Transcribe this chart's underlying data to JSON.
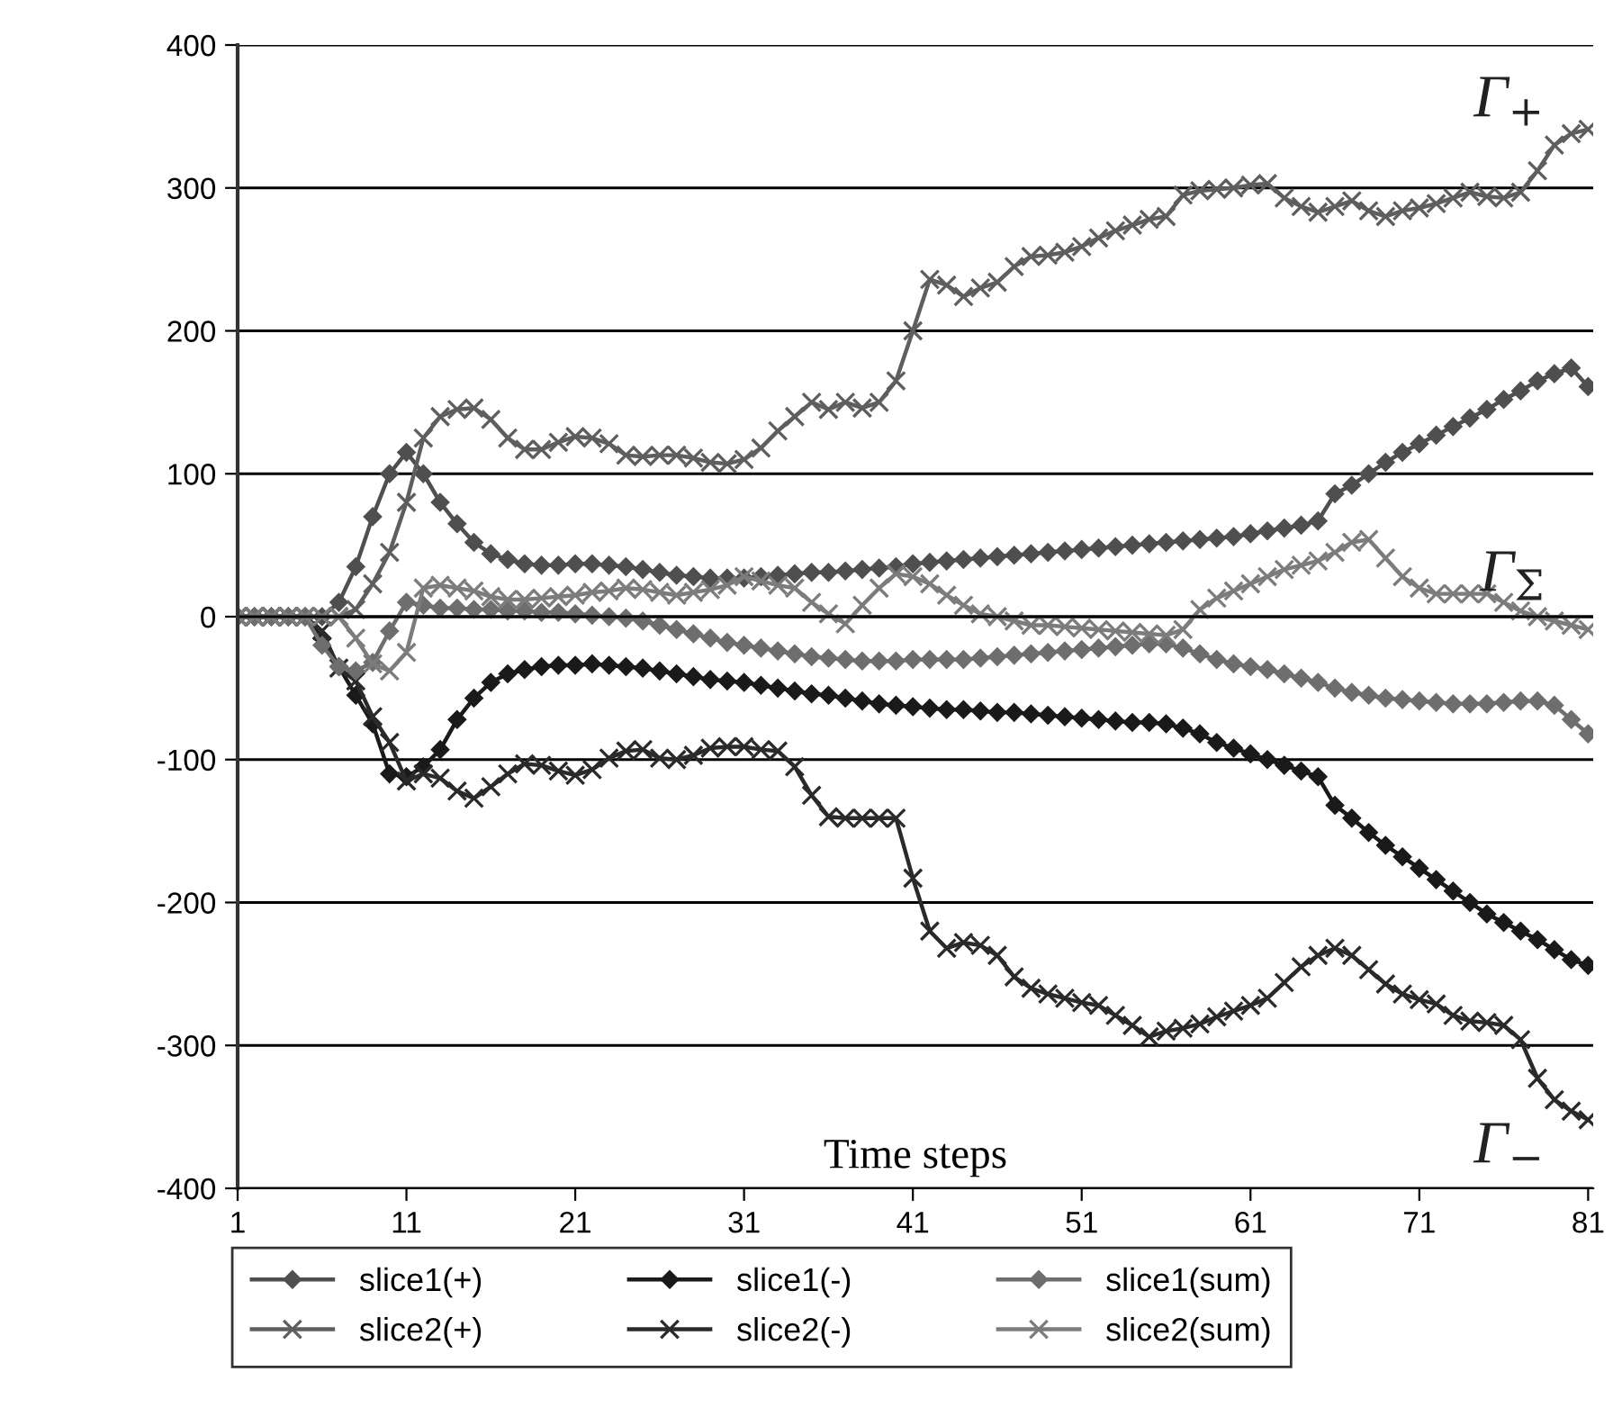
{
  "chart_data": {
    "type": "line",
    "xlabel": "Time steps",
    "categories": [
      "1",
      null,
      null,
      null,
      null,
      null,
      null,
      null,
      null,
      null,
      "11",
      null,
      null,
      null,
      null,
      null,
      null,
      null,
      null,
      null,
      "21",
      null,
      null,
      null,
      null,
      null,
      null,
      null,
      null,
      null,
      "31",
      null,
      null,
      null,
      null,
      null,
      null,
      null,
      null,
      null,
      "41",
      null,
      null,
      null,
      null,
      null,
      null,
      null,
      null,
      null,
      "51",
      null,
      null,
      null,
      null,
      null,
      null,
      null,
      null,
      null,
      "61",
      null,
      null,
      null,
      null,
      null,
      null,
      null,
      null,
      null,
      "71",
      null,
      null,
      null,
      null,
      null,
      null,
      null,
      null,
      null,
      "81"
    ],
    "series": [
      {
        "name": "slice1(+)",
        "color": "#4f4f4f",
        "marker": "diamond",
        "values": [
          0,
          0,
          0,
          0,
          0,
          0,
          10,
          35,
          70,
          100,
          115,
          100,
          80,
          65,
          52,
          44,
          40,
          37,
          36,
          36,
          37,
          37,
          36,
          35,
          33,
          31,
          29,
          28,
          27,
          27,
          27,
          28,
          29,
          30,
          31,
          31,
          32,
          33,
          34,
          35,
          37,
          38,
          39,
          40,
          41,
          42,
          43,
          44,
          45,
          46,
          47,
          48,
          49,
          50,
          51,
          52,
          53,
          54,
          55,
          56,
          58,
          60,
          62,
          64,
          67,
          86,
          92,
          100,
          108,
          115,
          121,
          127,
          133,
          139,
          145,
          152,
          158,
          165,
          170,
          174,
          161
        ]
      },
      {
        "name": "slice2(+)",
        "color": "#5e5e5e",
        "marker": "cross",
        "values": [
          0,
          0,
          0,
          0,
          0,
          0,
          0,
          5,
          23,
          45,
          80,
          125,
          140,
          145,
          146,
          138,
          125,
          117,
          117,
          122,
          126,
          125,
          121,
          113,
          112,
          113,
          113,
          111,
          108,
          107,
          110,
          118,
          130,
          140,
          150,
          145,
          150,
          146,
          150,
          165,
          200,
          236,
          232,
          224,
          230,
          234,
          245,
          252,
          253,
          255,
          259,
          265,
          270,
          274,
          278,
          280,
          295,
          298,
          299,
          300,
          302,
          303,
          293,
          287,
          283,
          287,
          291,
          284,
          280,
          284,
          286,
          289,
          293,
          297,
          294,
          293,
          297,
          312,
          330,
          338,
          341
        ]
      },
      {
        "name": "slice1(-)",
        "color": "#1a1a1a",
        "marker": "diamond",
        "values": [
          0,
          0,
          0,
          0,
          0,
          -15,
          -35,
          -55,
          -75,
          -110,
          -112,
          -105,
          -93,
          -72,
          -57,
          -46,
          -40,
          -37,
          -35,
          -34,
          -34,
          -33,
          -34,
          -35,
          -36,
          -38,
          -40,
          -42,
          -44,
          -45,
          -46,
          -48,
          -50,
          -52,
          -54,
          -55,
          -57,
          -59,
          -61,
          -62,
          -63,
          -64,
          -65,
          -65,
          -66,
          -67,
          -67,
          -68,
          -69,
          -70,
          -71,
          -72,
          -73,
          -74,
          -74,
          -75,
          -78,
          -82,
          -88,
          -92,
          -96,
          -100,
          -104,
          -108,
          -112,
          -132,
          -141,
          -151,
          -160,
          -168,
          -176,
          -184,
          -192,
          -200,
          -208,
          -214,
          -220,
          -226,
          -233,
          -240,
          -244
        ]
      },
      {
        "name": "slice2(-)",
        "color": "#2a2a2a",
        "marker": "cross",
        "values": [
          0,
          0,
          0,
          0,
          0,
          -10,
          -36,
          -45,
          -70,
          -88,
          -115,
          -110,
          -113,
          -122,
          -127,
          -119,
          -110,
          -103,
          -104,
          -108,
          -111,
          -107,
          -99,
          -94,
          -93,
          -99,
          -100,
          -97,
          -92,
          -91,
          -91,
          -93,
          -94,
          -105,
          -125,
          -140,
          -141,
          -141,
          -141,
          -141,
          -183,
          -220,
          -232,
          -228,
          -230,
          -237,
          -252,
          -260,
          -264,
          -267,
          -270,
          -272,
          -279,
          -286,
          -294,
          -290,
          -288,
          -285,
          -280,
          -276,
          -272,
          -267,
          -256,
          -245,
          -237,
          -232,
          -237,
          -247,
          -257,
          -264,
          -268,
          -271,
          -279,
          -283,
          -284,
          -286,
          -296,
          -323,
          -338,
          -346,
          -352
        ]
      },
      {
        "name": "slice1(sum)",
        "color": "#6e6e6e",
        "marker": "diamond",
        "values": [
          0,
          0,
          0,
          0,
          0,
          -20,
          -35,
          -38,
          -32,
          -10,
          10,
          8,
          6,
          6,
          5,
          5,
          4,
          4,
          3,
          3,
          2,
          1,
          0,
          -1,
          -3,
          -6,
          -9,
          -12,
          -15,
          -18,
          -20,
          -22,
          -24,
          -26,
          -28,
          -29,
          -30,
          -31,
          -31,
          -31,
          -30,
          -30,
          -30,
          -30,
          -29,
          -28,
          -27,
          -26,
          -25,
          -24,
          -23,
          -22,
          -21,
          -20,
          -19,
          -19,
          -22,
          -26,
          -30,
          -33,
          -35,
          -37,
          -40,
          -43,
          -46,
          -50,
          -53,
          -55,
          -57,
          -58,
          -59,
          -60,
          -61,
          -61,
          -61,
          -60,
          -59,
          -59,
          -62,
          -72,
          -82
        ]
      },
      {
        "name": "slice2(sum)",
        "color": "#7c7c7c",
        "marker": "cross",
        "values": [
          0,
          0,
          0,
          0,
          0,
          0,
          0,
          -15,
          -33,
          -38,
          -25,
          20,
          22,
          20,
          18,
          14,
          12,
          12,
          13,
          14,
          15,
          17,
          18,
          20,
          19,
          17,
          15,
          17,
          19,
          22,
          28,
          25,
          22,
          20,
          10,
          2,
          -5,
          8,
          20,
          30,
          28,
          23,
          15,
          8,
          2,
          0,
          -3,
          -6,
          -6,
          -7,
          -8,
          -9,
          -10,
          -11,
          -12,
          -13,
          -9,
          5,
          13,
          18,
          23,
          28,
          33,
          36,
          39,
          45,
          52,
          54,
          41,
          28,
          20,
          16,
          16,
          16,
          16,
          10,
          4,
          0,
          -3,
          -6,
          -9
        ]
      }
    ],
    "ylim": [
      -400,
      400
    ],
    "yticks": [
      -400,
      -300,
      -200,
      -100,
      0,
      100,
      200,
      300,
      400
    ],
    "grid": "y",
    "legend": "bottom",
    "line_style": "solid",
    "annotations": [
      "Γ$_{+}$",
      "Γ$_{Σ}$",
      "Γ$_{−}$"
    ]
  }
}
